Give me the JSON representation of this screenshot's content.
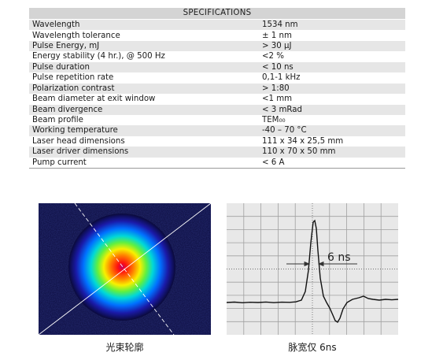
{
  "spec_table": {
    "header": "SPECIFICATIONS",
    "rows": [
      {
        "param": "Wavelength",
        "value": "1534 nm"
      },
      {
        "param": "Wavelength tolerance",
        "value": "± 1 nm"
      },
      {
        "param": "Pulse Energy, mJ",
        "value": "> 30 μJ"
      },
      {
        "param": "Energy stability (4 hr.), @ 500 Hz",
        "value": "<2 %"
      },
      {
        "param": "Pulse duration",
        "value": "< 10 ns"
      },
      {
        "param": "Pulse repetition rate",
        "value": "0,1-1 kHz"
      },
      {
        "param": "Polarization contrast",
        "value": "> 1:80"
      },
      {
        "param": "Beam diameter at exit window",
        "value": "<1 mm"
      },
      {
        "param": "Beam divergence",
        "value": "< 3 mRad"
      },
      {
        "param": "Beam profile",
        "value": "TEM₀₀"
      },
      {
        "param": "Working temperature",
        "value": "-40 – 70 °C"
      },
      {
        "param": "Laser head dimensions",
        "value": "111 x 34 x 25,5 mm"
      },
      {
        "param": "Laser driver dimensions",
        "value": "110 x 70 x 50 mm"
      },
      {
        "param": "Pump current",
        "value": "< 6 A"
      }
    ]
  },
  "beam_profile": {
    "caption": "光束轮廓",
    "colors": {
      "background": "#0a0a3a",
      "core": "#ff0000",
      "ring": "#00c8ff"
    }
  },
  "pulse_trace": {
    "caption": "脉宽仅 6ns",
    "annotation": "6 ns",
    "colors": {
      "background": "#e8e8e8",
      "grid": "#a0a0a0",
      "trace": "#111111"
    }
  }
}
